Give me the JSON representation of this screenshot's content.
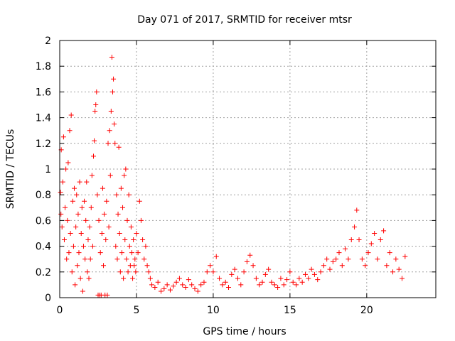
{
  "chart_data": {
    "type": "scatter",
    "title": "Day 071 of 2017, SRMTID for receiver mtsr",
    "xlabel": "GPS time / hours",
    "ylabel": "SRMTID / TECUs",
    "xlim": [
      0,
      24.5
    ],
    "ylim": [
      0,
      2
    ],
    "xticks": [
      0,
      5,
      10,
      15,
      20
    ],
    "yticks": [
      0,
      0.2,
      0.4,
      0.6,
      0.8,
      1,
      1.2,
      1.4,
      1.6,
      1.8,
      2
    ],
    "xtick_labels": [
      "0",
      "5",
      "10",
      "15",
      "20"
    ],
    "ytick_labels": [
      "0",
      "0.2",
      "0.4",
      "0.6",
      "0.8",
      "1",
      "1.2",
      "1.4",
      "1.6",
      "1.8",
      "2"
    ],
    "grid": true,
    "marker": "+",
    "color": "#ff0000",
    "series": [
      {
        "name": "SRMTID",
        "points": [
          [
            0.05,
            0.82
          ],
          [
            0.08,
            0.65
          ],
          [
            0.1,
            1.15
          ],
          [
            0.15,
            0.55
          ],
          [
            0.2,
            0.9
          ],
          [
            0.25,
            1.25
          ],
          [
            0.3,
            0.45
          ],
          [
            0.35,
            0.7
          ],
          [
            0.4,
            1.0
          ],
          [
            0.45,
            0.3
          ],
          [
            0.5,
            0.6
          ],
          [
            0.55,
            1.05
          ],
          [
            0.6,
            0.35
          ],
          [
            0.65,
            1.3
          ],
          [
            0.7,
            0.5
          ],
          [
            0.75,
            1.42
          ],
          [
            0.8,
            0.2
          ],
          [
            0.85,
            0.75
          ],
          [
            0.9,
            0.4
          ],
          [
            0.95,
            0.85
          ],
          [
            1.0,
            0.1
          ],
          [
            1.05,
            0.55
          ],
          [
            1.1,
            0.8
          ],
          [
            1.15,
            0.25
          ],
          [
            1.2,
            0.65
          ],
          [
            1.25,
            0.35
          ],
          [
            1.3,
            0.9
          ],
          [
            1.35,
            0.15
          ],
          [
            1.4,
            0.5
          ],
          [
            1.45,
            0.7
          ],
          [
            1.5,
            0.05
          ],
          [
            1.55,
            0.4
          ],
          [
            1.6,
            0.75
          ],
          [
            1.65,
            0.3
          ],
          [
            1.7,
            0.6
          ],
          [
            1.75,
            0.9
          ],
          [
            1.8,
            0.2
          ],
          [
            1.85,
            0.45
          ],
          [
            1.9,
            0.15
          ],
          [
            1.95,
            0.55
          ],
          [
            2.0,
            0.3
          ],
          [
            2.05,
            0.7
          ],
          [
            2.1,
            0.95
          ],
          [
            2.15,
            0.4
          ],
          [
            2.2,
            1.1
          ],
          [
            2.25,
            1.22
          ],
          [
            2.3,
            1.45
          ],
          [
            2.35,
            1.5
          ],
          [
            2.4,
            1.6
          ],
          [
            2.45,
            0.8
          ],
          [
            2.5,
            0.02
          ],
          [
            2.55,
            0.6
          ],
          [
            2.6,
            0.02
          ],
          [
            2.65,
            0.35
          ],
          [
            2.7,
            0.02
          ],
          [
            2.75,
            0.5
          ],
          [
            2.8,
            0.85
          ],
          [
            2.85,
            0.25
          ],
          [
            2.9,
            0.65
          ],
          [
            2.95,
            0.02
          ],
          [
            3.0,
            0.45
          ],
          [
            3.05,
            0.75
          ],
          [
            3.1,
            0.02
          ],
          [
            3.15,
            1.2
          ],
          [
            3.2,
            0.55
          ],
          [
            3.25,
            1.3
          ],
          [
            3.3,
            0.95
          ],
          [
            3.35,
            1.45
          ],
          [
            3.4,
            1.87
          ],
          [
            3.45,
            1.6
          ],
          [
            3.5,
            1.7
          ],
          [
            3.55,
            1.35
          ],
          [
            3.6,
            1.2
          ],
          [
            3.65,
            0.4
          ],
          [
            3.7,
            0.8
          ],
          [
            3.75,
            0.3
          ],
          [
            3.8,
            0.65
          ],
          [
            3.85,
            1.17
          ],
          [
            3.9,
            0.5
          ],
          [
            3.95,
            0.2
          ],
          [
            4.0,
            0.85
          ],
          [
            4.05,
            0.35
          ],
          [
            4.1,
            0.7
          ],
          [
            4.15,
            0.15
          ],
          [
            4.2,
            0.95
          ],
          [
            4.25,
            0.45
          ],
          [
            4.3,
            1.0
          ],
          [
            4.35,
            0.3
          ],
          [
            4.4,
            0.6
          ],
          [
            4.45,
            0.2
          ],
          [
            4.5,
            0.8
          ],
          [
            4.55,
            0.4
          ],
          [
            4.6,
            0.25
          ],
          [
            4.65,
            0.55
          ],
          [
            4.7,
            0.35
          ],
          [
            4.75,
            0.15
          ],
          [
            4.8,
            0.45
          ],
          [
            4.85,
            0.25
          ],
          [
            4.9,
            0.3
          ],
          [
            4.95,
            0.2
          ],
          [
            5.0,
            0.5
          ],
          [
            5.1,
            0.35
          ],
          [
            5.2,
            0.75
          ],
          [
            5.3,
            0.6
          ],
          [
            5.4,
            0.45
          ],
          [
            5.5,
            0.3
          ],
          [
            5.6,
            0.4
          ],
          [
            5.7,
            0.25
          ],
          [
            5.8,
            0.2
          ],
          [
            5.9,
            0.15
          ],
          [
            6.0,
            0.1
          ],
          [
            6.2,
            0.08
          ],
          [
            6.4,
            0.12
          ],
          [
            6.6,
            0.05
          ],
          [
            6.8,
            0.07
          ],
          [
            7.0,
            0.1
          ],
          [
            7.2,
            0.06
          ],
          [
            7.4,
            0.09
          ],
          [
            7.6,
            0.12
          ],
          [
            7.8,
            0.15
          ],
          [
            8.0,
            0.1
          ],
          [
            8.2,
            0.08
          ],
          [
            8.4,
            0.14
          ],
          [
            8.6,
            0.1
          ],
          [
            8.8,
            0.07
          ],
          [
            9.0,
            0.05
          ],
          [
            9.2,
            0.1
          ],
          [
            9.4,
            0.12
          ],
          [
            9.6,
            0.2
          ],
          [
            9.8,
            0.25
          ],
          [
            10.0,
            0.2
          ],
          [
            10.2,
            0.32
          ],
          [
            10.4,
            0.15
          ],
          [
            10.6,
            0.1
          ],
          [
            10.8,
            0.12
          ],
          [
            11.0,
            0.08
          ],
          [
            11.2,
            0.18
          ],
          [
            11.4,
            0.22
          ],
          [
            11.6,
            0.15
          ],
          [
            11.8,
            0.1
          ],
          [
            12.0,
            0.2
          ],
          [
            12.2,
            0.28
          ],
          [
            12.4,
            0.33
          ],
          [
            12.6,
            0.25
          ],
          [
            12.8,
            0.15
          ],
          [
            13.0,
            0.1
          ],
          [
            13.2,
            0.12
          ],
          [
            13.4,
            0.18
          ],
          [
            13.6,
            0.22
          ],
          [
            13.8,
            0.12
          ],
          [
            14.0,
            0.1
          ],
          [
            14.2,
            0.08
          ],
          [
            14.4,
            0.15
          ],
          [
            14.6,
            0.1
          ],
          [
            14.8,
            0.14
          ],
          [
            15.0,
            0.2
          ],
          [
            15.2,
            0.12
          ],
          [
            15.4,
            0.1
          ],
          [
            15.6,
            0.15
          ],
          [
            15.8,
            0.12
          ],
          [
            16.0,
            0.18
          ],
          [
            16.2,
            0.15
          ],
          [
            16.4,
            0.22
          ],
          [
            16.6,
            0.18
          ],
          [
            16.8,
            0.14
          ],
          [
            17.0,
            0.2
          ],
          [
            17.2,
            0.25
          ],
          [
            17.4,
            0.3
          ],
          [
            17.6,
            0.22
          ],
          [
            17.8,
            0.28
          ],
          [
            18.0,
            0.3
          ],
          [
            18.2,
            0.35
          ],
          [
            18.4,
            0.25
          ],
          [
            18.6,
            0.38
          ],
          [
            18.8,
            0.3
          ],
          [
            19.0,
            0.45
          ],
          [
            19.2,
            0.55
          ],
          [
            19.35,
            0.68
          ],
          [
            19.5,
            0.45
          ],
          [
            19.7,
            0.3
          ],
          [
            19.9,
            0.25
          ],
          [
            20.1,
            0.35
          ],
          [
            20.3,
            0.42
          ],
          [
            20.5,
            0.5
          ],
          [
            20.7,
            0.3
          ],
          [
            20.9,
            0.45
          ],
          [
            21.1,
            0.52
          ],
          [
            21.3,
            0.25
          ],
          [
            21.5,
            0.35
          ],
          [
            21.7,
            0.2
          ],
          [
            21.9,
            0.3
          ],
          [
            22.1,
            0.22
          ],
          [
            22.3,
            0.15
          ],
          [
            22.5,
            0.32
          ]
        ]
      }
    ]
  }
}
